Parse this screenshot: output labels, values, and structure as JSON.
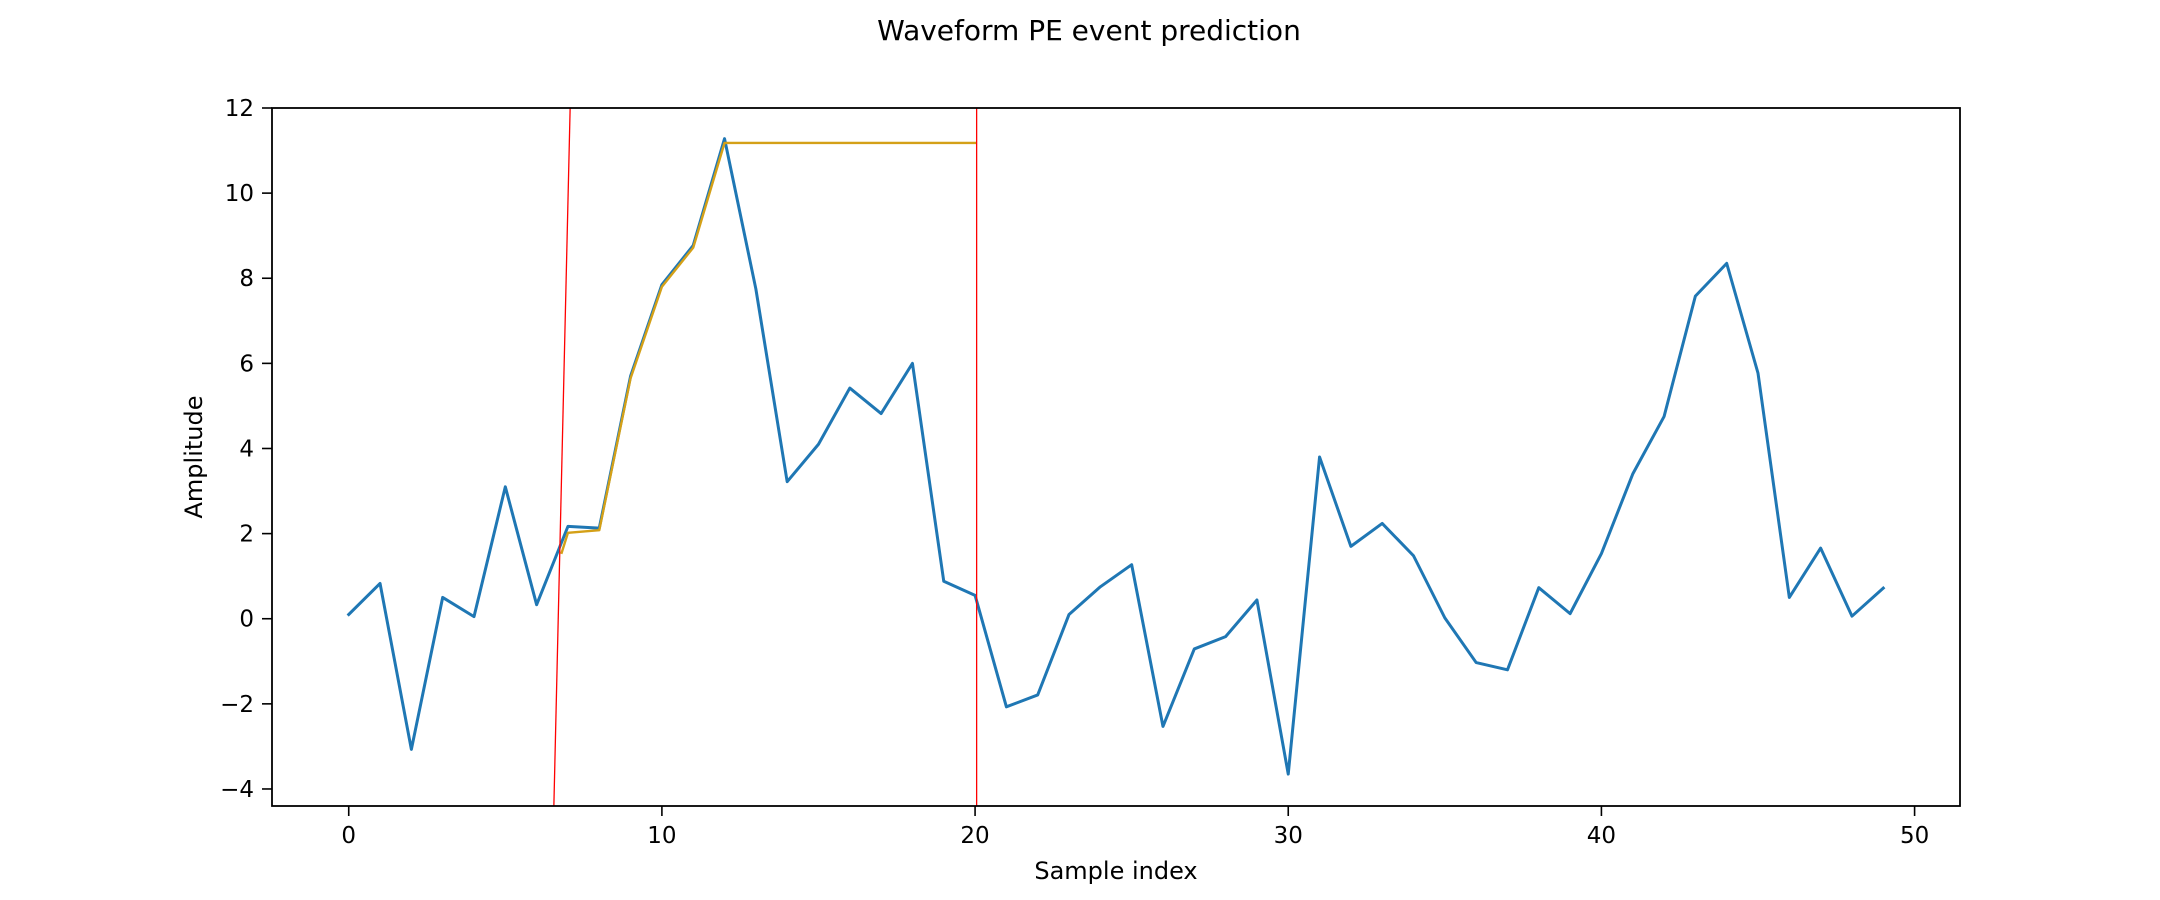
{
  "chart_data": {
    "type": "line",
    "title": "Waveform PE event prediction",
    "xlabel": "Sample index",
    "ylabel": "Amplitude",
    "xlim": [
      -2.45,
      51.45
    ],
    "ylim": [
      -4.4,
      12.0
    ],
    "xticks": [
      0,
      10,
      20,
      30,
      40,
      50
    ],
    "yticks": [
      -4,
      -2,
      0,
      2,
      4,
      6,
      8,
      10,
      12
    ],
    "ytick_labels": [
      "−4",
      "−2",
      "0",
      "2",
      "4",
      "6",
      "8",
      "10",
      "12"
    ],
    "grid": false,
    "legend": "none",
    "series": [
      {
        "color": "#1f77b4",
        "x": [
          0,
          1,
          2,
          3,
          4,
          5,
          6,
          7,
          8,
          9,
          10,
          11,
          12,
          13,
          14,
          15,
          16,
          17,
          18,
          19,
          20,
          21,
          22,
          23,
          24,
          25,
          26,
          27,
          28,
          29,
          30,
          31,
          32,
          33,
          34,
          35,
          36,
          37,
          38,
          39,
          40,
          41,
          42,
          43,
          44,
          45,
          46,
          47,
          48,
          49
        ],
        "y": [
          0.1,
          0.83,
          -3.07,
          0.5,
          0.05,
          3.1,
          0.33,
          2.17,
          2.13,
          5.7,
          7.85,
          8.77,
          11.28,
          7.75,
          3.22,
          4.1,
          5.42,
          4.82,
          6.0,
          0.88,
          0.55,
          -2.07,
          -1.79,
          0.1,
          0.75,
          1.27,
          -2.53,
          -0.71,
          -0.42,
          0.44,
          -3.65,
          3.8,
          1.7,
          2.24,
          1.48,
          0.02,
          -1.03,
          -1.2,
          0.73,
          0.12,
          1.53,
          3.4,
          4.75,
          7.58,
          8.35,
          5.77,
          0.5,
          1.66,
          0.06,
          0.72
        ]
      },
      {
        "color": "#d4a017",
        "x": [
          6.8,
          7,
          8,
          9,
          10,
          11,
          12,
          13,
          14,
          15,
          16,
          17,
          18,
          19,
          20
        ],
        "y": [
          1.55,
          2.02,
          2.08,
          5.65,
          7.8,
          8.72,
          11.18,
          11.18,
          11.18,
          11.18,
          11.18,
          11.18,
          11.18,
          11.18,
          11.18
        ]
      }
    ],
    "vlines": [
      {
        "color": "#ff0000",
        "x_bottom": 6.55,
        "x_top": 7.07
      },
      {
        "color": "#ff0000",
        "x_bottom": 20.05,
        "x_top": 20.05
      }
    ]
  }
}
